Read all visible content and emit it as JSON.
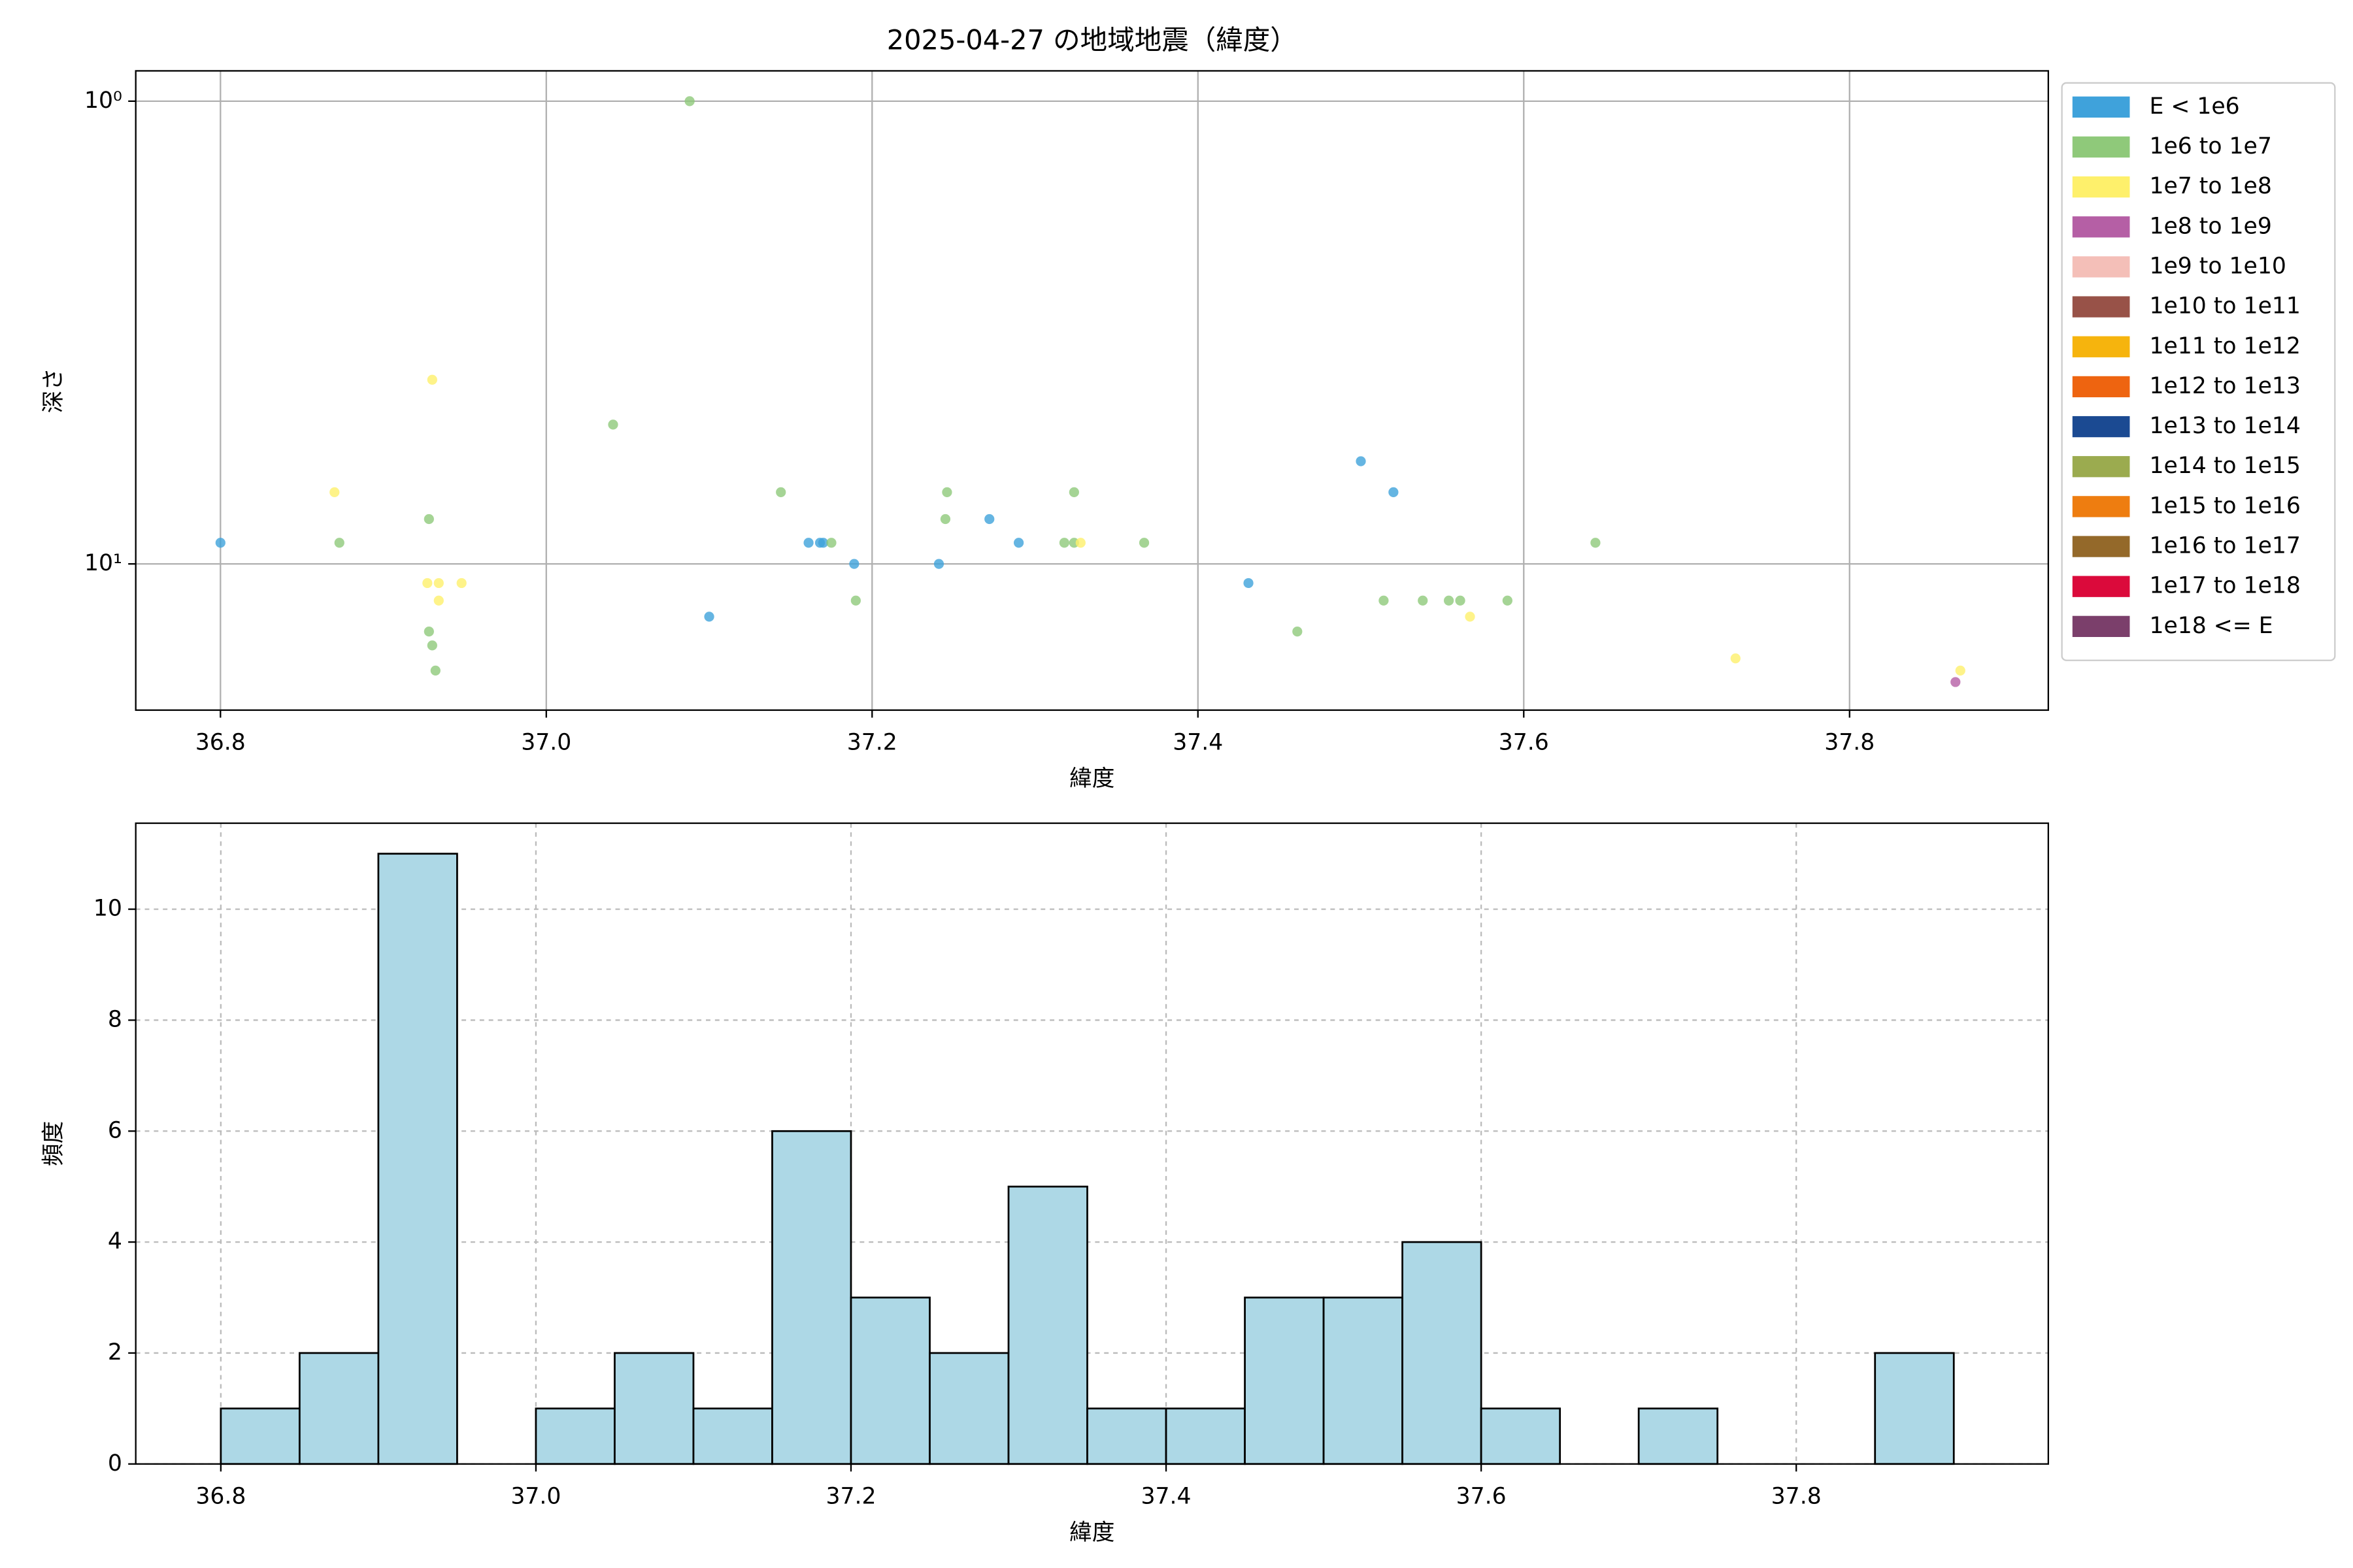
{
  "chart_data": [
    {
      "type": "scatter",
      "title": "2025-04-27 の地域地震（緯度）",
      "xlabel": "緯度",
      "ylabel": "深さ",
      "xlim": [
        36.748,
        37.922
      ],
      "xticks": [
        36.8,
        {
          "value": 37.0,
          "label": "37.0"
        },
        37.2,
        37.4,
        37.6,
        37.8
      ],
      "ylim": [
        0.86,
        20.7
      ],
      "yscale": "log",
      "y_inverted": true,
      "yticks": [
        {
          "value": 1,
          "label": "10⁰"
        },
        {
          "value": 10,
          "label": "10¹"
        }
      ],
      "grid": true,
      "grid_style": "solid",
      "legend": "outside right",
      "series": [
        {
          "name": "E < 1e6",
          "color": "#3fa2db",
          "x": [
            36.8,
            37.1,
            37.161,
            37.168,
            37.17,
            37.189,
            37.241,
            37.272,
            37.29,
            37.431,
            37.5,
            37.52
          ],
          "values": [
            9,
            13,
            9,
            9,
            9,
            10,
            10,
            8,
            9,
            11,
            6,
            7
          ]
        },
        {
          "name": "1e6 to 1e7",
          "color": "#8fc97a",
          "x": [
            37.088,
            36.873,
            36.928,
            36.928,
            36.93,
            36.932,
            37.041,
            37.144,
            37.175,
            37.19,
            37.245,
            37.246,
            37.318,
            37.324,
            37.324,
            37.367,
            37.461,
            37.514,
            37.538,
            37.554,
            37.561,
            37.59,
            37.644
          ],
          "values": [
            1,
            9,
            8,
            14,
            15,
            17,
            5,
            7,
            9,
            12,
            8,
            7,
            9,
            9,
            7,
            9,
            14,
            12,
            12,
            12,
            12,
            12,
            9
          ]
        },
        {
          "name": "1e7 to 1e8",
          "color": "#fef06b",
          "x": [
            36.87,
            36.93,
            36.927,
            36.934,
            36.934,
            36.948,
            37.328,
            37.567,
            37.73,
            37.868
          ],
          "values": [
            7,
            4,
            11,
            11,
            12,
            11,
            9,
            13,
            16,
            17
          ]
        },
        {
          "name": "1e8 to 1e9",
          "color": "#b55fa5",
          "x": [
            37.865
          ],
          "values": [
            18
          ]
        },
        {
          "name": "1e9 to 1e10",
          "color": "#f4bfb8",
          "x": [],
          "values": []
        },
        {
          "name": "1e10 to 1e11",
          "color": "#985248",
          "x": [],
          "values": []
        },
        {
          "name": "1e11 to 1e12",
          "color": "#f6b40d",
          "x": [],
          "values": []
        },
        {
          "name": "1e12 to 1e13",
          "color": "#ee6410",
          "x": [],
          "values": []
        },
        {
          "name": "1e13 to 1e14",
          "color": "#1b4a92",
          "x": [],
          "values": []
        },
        {
          "name": "1e14 to 1e15",
          "color": "#9bab4f",
          "x": [],
          "values": []
        },
        {
          "name": "1e15 to 1e16",
          "color": "#ee7d10",
          "x": [],
          "values": []
        },
        {
          "name": "1e16 to 1e17",
          "color": "#94692a",
          "x": [],
          "values": []
        },
        {
          "name": "1e17 to 1e18",
          "color": "#db0a3b",
          "x": [],
          "values": []
        },
        {
          "name": "1e18 <= E",
          "color": "#7b3f6b",
          "x": [],
          "values": []
        }
      ]
    },
    {
      "type": "histogram",
      "xlabel": "緯度",
      "ylabel": "頻度",
      "color": "#add8e6",
      "edgecolor": "#000000",
      "bins": [
        36.8,
        36.85,
        36.9,
        36.95,
        37.0,
        37.05,
        37.1,
        37.15,
        37.2,
        37.25,
        37.3,
        37.35,
        37.4,
        37.45,
        37.5,
        37.55,
        37.6,
        37.65,
        37.7,
        37.75,
        37.8,
        37.85,
        37.9
      ],
      "values": [
        1,
        2,
        11,
        0,
        1,
        2,
        1,
        6,
        3,
        2,
        5,
        1,
        1,
        3,
        3,
        4,
        1,
        0,
        1,
        0,
        0,
        2
      ],
      "xlim": [
        36.746,
        37.96
      ],
      "xticks": [
        36.8,
        {
          "value": 37.0,
          "label": "37.0"
        },
        37.2,
        37.4,
        37.6,
        37.8
      ],
      "ylim": [
        0,
        11.55
      ],
      "yticks": [
        0,
        2,
        4,
        6,
        8,
        10
      ],
      "grid": true,
      "grid_style": "dashed"
    }
  ]
}
